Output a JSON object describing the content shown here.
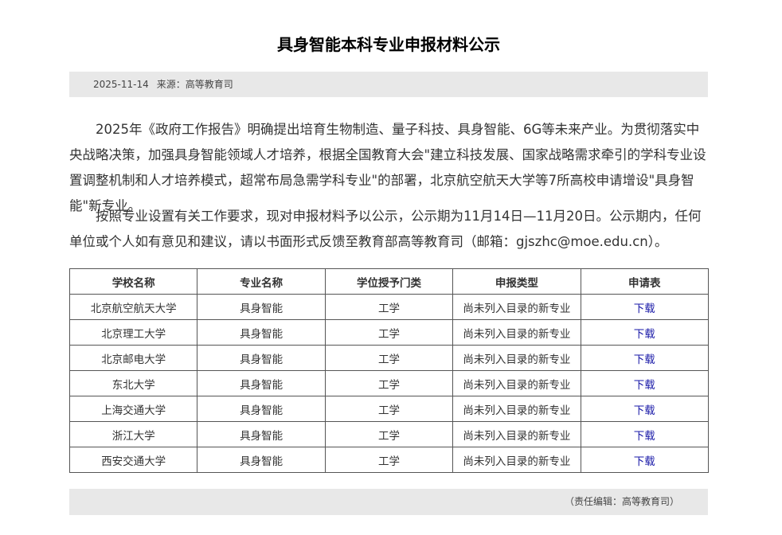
{
  "title": "具身智能本科专业申报材料公示",
  "meta": {
    "date": "2025-11-14",
    "source": "来源：高等教育司"
  },
  "paragraphs": [
    "2025年《政府工作报告》明确提出培育生物制造、量子科技、具身智能、6G等未来产业。为贯彻落实中央战略决策，加强具身智能领域人才培养，根据全国教育大会\"建立科技发展、国家战略需求牵引的学科专业设置调整机制和人才培养模式，超常布局急需学科专业\"的部署，北京航空航天大学等7所高校申请增设\"具身智能\"新专业。",
    "按照专业设置有关工作要求，现对申报材料予以公示，公示期为11月14日—11月20日。公示期内，任何单位或个人如有意见和建议，请以书面形式反馈至教育部高等教育司（邮箱：gjszhc@moe.edu.cn）。"
  ],
  "table": {
    "headers": [
      "学校名称",
      "专业名称",
      "学位授予门类",
      "申报类型",
      "申请表"
    ],
    "rows": [
      [
        "北京航空航天大学",
        "具身智能",
        "工学",
        "尚未列入目录的新专业",
        "下载"
      ],
      [
        "北京理工大学",
        "具身智能",
        "工学",
        "尚未列入目录的新专业",
        "下载"
      ],
      [
        "北京邮电大学",
        "具身智能",
        "工学",
        "尚未列入目录的新专业",
        "下载"
      ],
      [
        "东北大学",
        "具身智能",
        "工学",
        "尚未列入目录的新专业",
        "下载"
      ],
      [
        "上海交通大学",
        "具身智能",
        "工学",
        "尚未列入目录的新专业",
        "下载"
      ],
      [
        "浙江大学",
        "具身智能",
        "工学",
        "尚未列入目录的新专业",
        "下载"
      ],
      [
        "西安交通大学",
        "具身智能",
        "工学",
        "尚未列入目录的新专业",
        "下载"
      ]
    ]
  },
  "footer": {
    "editor": "（责任编辑：高等教育司）"
  },
  "colors": {
    "link": "#1a1aa8",
    "bar": "#e8e8e8"
  }
}
